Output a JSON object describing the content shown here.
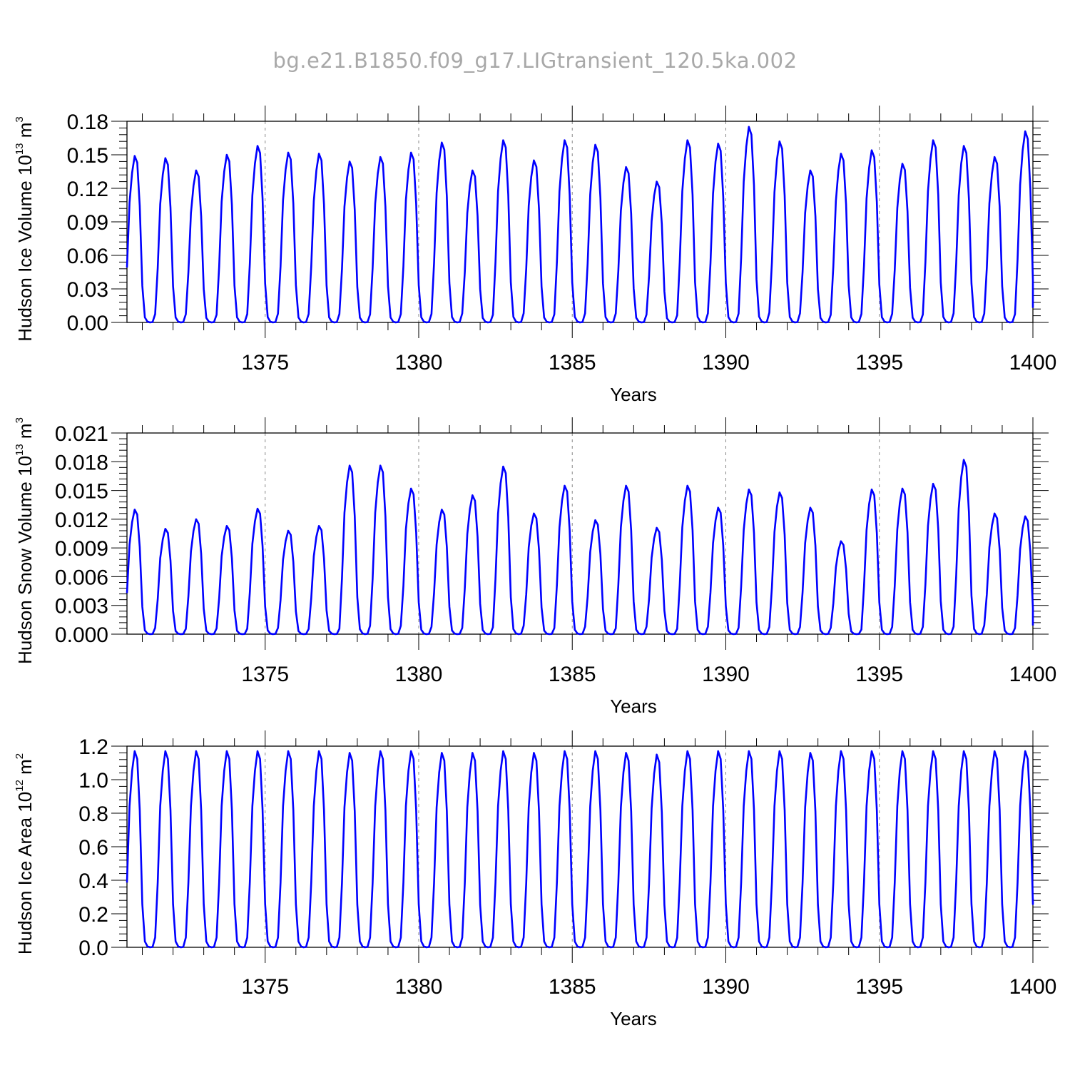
{
  "figure_title": "bg.e21.B1850.f09_g17.LIGtransient_120.5ka.002",
  "colors": {
    "series": "#0000ff",
    "axis": "#000000",
    "grid": "#888888",
    "title": "#a8a8a8"
  },
  "chart_data": [
    {
      "type": "line",
      "xlabel": "Years",
      "ylabel": "Hudson Ice Volume 10",
      "ylabel_exp": "13",
      "ylabel_unit": " m",
      "ylabel_unit_exp": "3",
      "xlim": [
        1370.5,
        1400
      ],
      "ylim": [
        0,
        0.18
      ],
      "xticks": [
        1375,
        1380,
        1385,
        1390,
        1395,
        1400
      ],
      "yticks": [
        0.0,
        0.03,
        0.06,
        0.09,
        0.12,
        0.15,
        0.18
      ],
      "ytick_labels": [
        "0.00",
        "0.03",
        "0.06",
        "0.09",
        "0.12",
        "0.15",
        "0.18"
      ],
      "grid_x": true,
      "series": [
        {
          "start_year": 1370.5,
          "step": 0.0833333,
          "annual_peaks": [
            0.149,
            0.147,
            0.136,
            0.15,
            0.158,
            0.152,
            0.151,
            0.144,
            0.148,
            0.152,
            0.161,
            0.136,
            0.163,
            0.145,
            0.163,
            0.159,
            0.139,
            0.126,
            0.163,
            0.16,
            0.175,
            0.162,
            0.136,
            0.151,
            0.154,
            0.142,
            0.163,
            0.158,
            0.148,
            0.171
          ],
          "end_value": 0.013
        }
      ]
    },
    {
      "type": "line",
      "xlabel": "Years",
      "ylabel": "Hudson Snow Volume 10",
      "ylabel_exp": "13",
      "ylabel_unit": " m",
      "ylabel_unit_exp": "3",
      "xlim": [
        1370.5,
        1400
      ],
      "ylim": [
        0,
        0.021
      ],
      "xticks": [
        1375,
        1380,
        1385,
        1390,
        1395,
        1400
      ],
      "yticks": [
        0.0,
        0.003,
        0.006,
        0.009,
        0.012,
        0.015,
        0.018,
        0.021
      ],
      "ytick_labels": [
        "0.000",
        "0.003",
        "0.006",
        "0.009",
        "0.012",
        "0.015",
        "0.018",
        "0.021"
      ],
      "grid_x": true,
      "series": [
        {
          "start_year": 1370.5,
          "step": 0.0833333,
          "annual_peaks": [
            0.013,
            0.011,
            0.012,
            0.0113,
            0.0131,
            0.0108,
            0.0113,
            0.0176,
            0.0176,
            0.0152,
            0.013,
            0.0145,
            0.0175,
            0.0126,
            0.0155,
            0.0119,
            0.0155,
            0.0111,
            0.0155,
            0.0132,
            0.0151,
            0.0148,
            0.0132,
            0.0097,
            0.0151,
            0.0152,
            0.0157,
            0.0182,
            0.0126,
            0.0123
          ],
          "end_value": 0.0009
        }
      ]
    },
    {
      "type": "line",
      "xlabel": "Years",
      "ylabel": "Hudson Ice Area 10",
      "ylabel_exp": "12",
      "ylabel_unit": " m",
      "ylabel_unit_exp": "2",
      "xlim": [
        1370.5,
        1400
      ],
      "ylim": [
        0,
        1.2
      ],
      "xticks": [
        1375,
        1380,
        1385,
        1390,
        1395,
        1400
      ],
      "yticks": [
        0.0,
        0.2,
        0.4,
        0.6,
        0.8,
        1.0,
        1.2
      ],
      "ytick_labels": [
        "0.0",
        "0.2",
        "0.4",
        "0.6",
        "0.8",
        "1.0",
        "1.2"
      ],
      "grid_x": true,
      "series": [
        {
          "start_year": 1370.5,
          "step": 0.0833333,
          "annual_peaks": [
            1.17,
            1.17,
            1.17,
            1.17,
            1.17,
            1.17,
            1.17,
            1.16,
            1.17,
            1.17,
            1.16,
            1.16,
            1.17,
            1.16,
            1.17,
            1.17,
            1.16,
            1.15,
            1.17,
            1.17,
            1.17,
            1.17,
            1.16,
            1.17,
            1.17,
            1.17,
            1.17,
            1.17,
            1.17,
            1.17
          ],
          "end_value": 0.29
        }
      ]
    }
  ]
}
